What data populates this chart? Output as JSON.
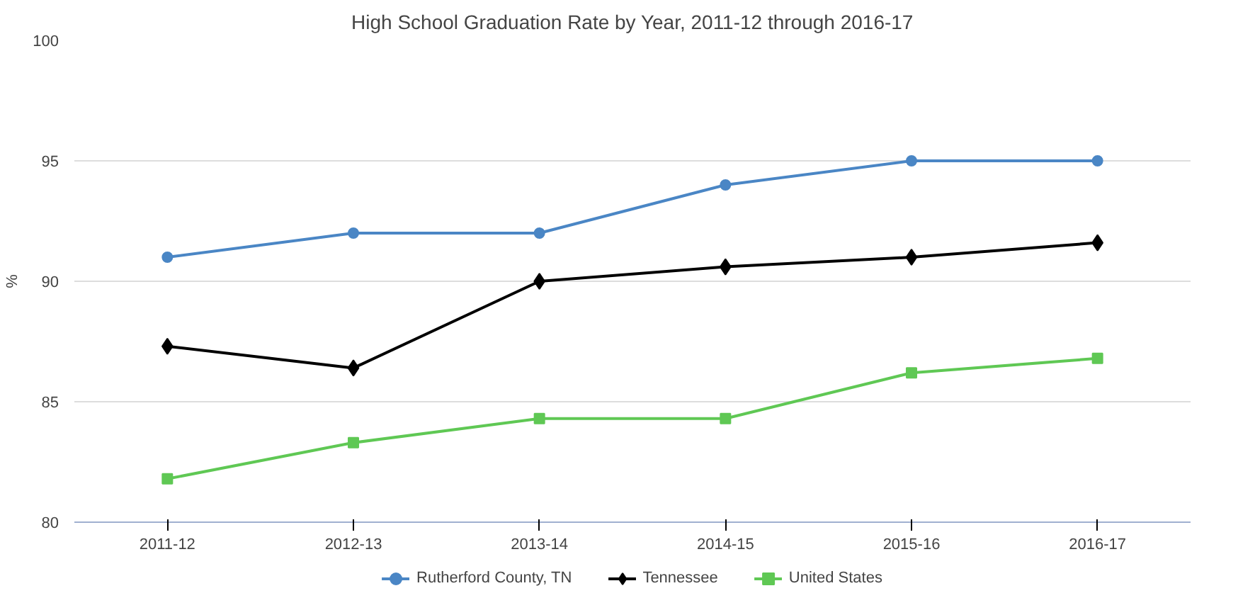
{
  "chart_data": {
    "type": "line",
    "title": "High School Graduation Rate by Year, 2011-12 through 2016-17",
    "ylabel": "%",
    "categories": [
      "2011-12",
      "2012-13",
      "2013-14",
      "2014-15",
      "2015-16",
      "2016-17"
    ],
    "series": [
      {
        "name": "Rutherford County, TN",
        "color": "#4a86c5",
        "marker": "circle",
        "values": [
          91.0,
          92.0,
          92.0,
          94.0,
          95.0,
          95.0
        ]
      },
      {
        "name": "Tennessee",
        "color": "#000000",
        "marker": "diamond",
        "values": [
          87.3,
          86.4,
          90.0,
          90.6,
          91.0,
          91.6
        ]
      },
      {
        "name": "United States",
        "color": "#5fc854",
        "marker": "square",
        "values": [
          81.8,
          83.3,
          84.3,
          84.3,
          86.2,
          86.8
        ]
      }
    ],
    "ylim": [
      80,
      100
    ],
    "yticks": [
      80,
      85,
      90,
      95,
      100
    ],
    "grid": "y",
    "legend": "bottom",
    "line_style": "solid"
  }
}
